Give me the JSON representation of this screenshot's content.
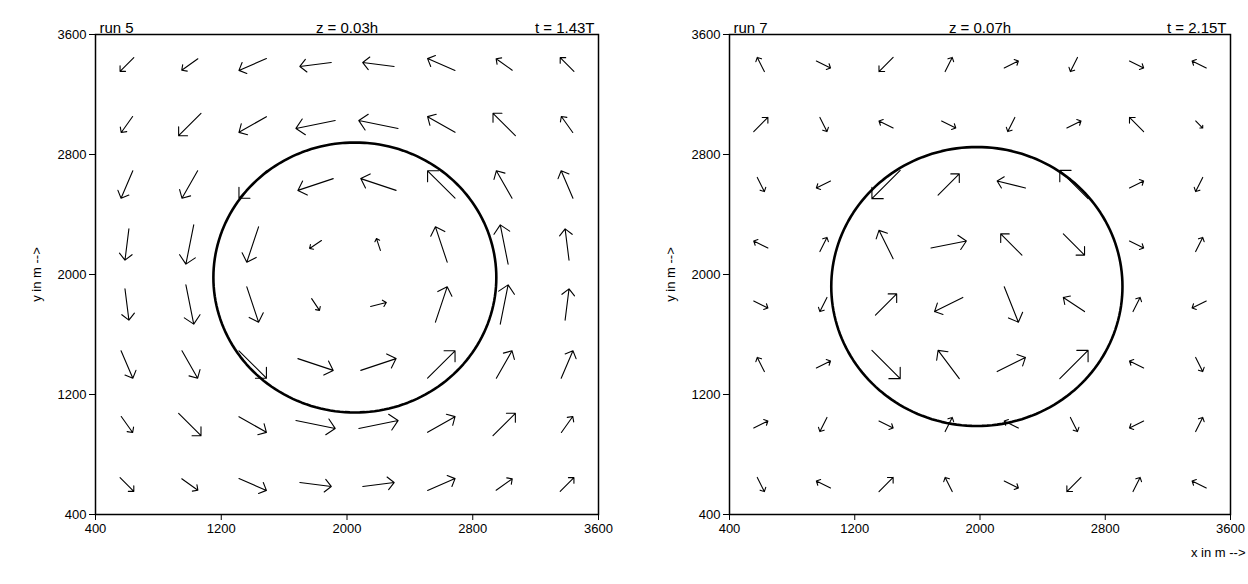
{
  "chart_data": [
    {
      "type": "vector",
      "title": "run 5",
      "level": "z = 0.03h",
      "time": "t = 1.43T",
      "ylabel": "y in m -->",
      "xlim": [
        400,
        3600
      ],
      "ylim": [
        400,
        3600
      ],
      "xticks": [
        400,
        1200,
        2000,
        2800,
        3600
      ],
      "yticks": [
        400,
        1200,
        2000,
        2800,
        3600
      ],
      "circle": {
        "x": 2050,
        "y": 1980,
        "r": 900
      },
      "vectors": [
        [
          600,
          600,
          0.035,
          -0.035
        ],
        [
          1000,
          600,
          0.041,
          -0.029
        ],
        [
          1400,
          600,
          0.07,
          -0.03
        ],
        [
          1800,
          600,
          0.08,
          -0.01
        ],
        [
          2200,
          600,
          0.08,
          0.01
        ],
        [
          2600,
          600,
          0.07,
          0.03
        ],
        [
          3000,
          600,
          0.041,
          0.029
        ],
        [
          3400,
          600,
          0.035,
          0.035
        ],
        [
          600,
          1000,
          0.029,
          -0.041
        ],
        [
          1000,
          1000,
          0.057,
          -0.057
        ],
        [
          1400,
          1000,
          0.07,
          -0.04
        ],
        [
          1800,
          1000,
          0.1,
          -0.02
        ],
        [
          2200,
          1000,
          0.1,
          0.02
        ],
        [
          2600,
          1000,
          0.07,
          0.04
        ],
        [
          3000,
          1000,
          0.057,
          0.057
        ],
        [
          3400,
          1000,
          0.029,
          0.041
        ],
        [
          600,
          1400,
          0.03,
          -0.07
        ],
        [
          1000,
          1400,
          0.04,
          -0.07
        ],
        [
          1400,
          1400,
          0.07,
          -0.07
        ],
        [
          1800,
          1400,
          0.09,
          -0.03
        ],
        [
          2200,
          1400,
          0.09,
          0.03
        ],
        [
          2600,
          1400,
          0.07,
          0.07
        ],
        [
          3000,
          1400,
          0.04,
          0.07
        ],
        [
          3400,
          1400,
          0.03,
          0.07
        ],
        [
          600,
          1800,
          0.01,
          -0.08
        ],
        [
          1000,
          1800,
          0.02,
          -0.1
        ],
        [
          1400,
          1800,
          0.03,
          -0.09
        ],
        [
          1800,
          1800,
          0.02,
          -0.03
        ],
        [
          2200,
          1800,
          0.04,
          0.01
        ],
        [
          2600,
          1800,
          0.03,
          0.09
        ],
        [
          3000,
          1800,
          0.02,
          0.1
        ],
        [
          3400,
          1800,
          0.01,
          0.08
        ],
        [
          600,
          2200,
          -0.01,
          -0.08
        ],
        [
          1000,
          2200,
          -0.02,
          -0.1
        ],
        [
          1400,
          2200,
          -0.03,
          -0.09
        ],
        [
          1800,
          2200,
          -0.03,
          -0.02
        ],
        [
          2200,
          2200,
          -0.01,
          0.03
        ],
        [
          2600,
          2200,
          -0.03,
          0.09
        ],
        [
          3000,
          2200,
          -0.02,
          0.1
        ],
        [
          3400,
          2200,
          -0.01,
          0.08
        ],
        [
          600,
          2600,
          -0.03,
          -0.07
        ],
        [
          1000,
          2600,
          -0.04,
          -0.07
        ],
        [
          1400,
          2600,
          -0.07,
          -0.07
        ],
        [
          1800,
          2600,
          -0.09,
          -0.03
        ],
        [
          2200,
          2600,
          -0.09,
          0.03
        ],
        [
          2600,
          2600,
          -0.07,
          0.07
        ],
        [
          3000,
          2600,
          -0.04,
          0.07
        ],
        [
          3400,
          2600,
          -0.03,
          0.07
        ],
        [
          600,
          3000,
          -0.029,
          -0.041
        ],
        [
          1000,
          3000,
          -0.057,
          -0.057
        ],
        [
          1400,
          3000,
          -0.07,
          -0.04
        ],
        [
          1800,
          3000,
          -0.1,
          -0.02
        ],
        [
          2200,
          3000,
          -0.1,
          0.02
        ],
        [
          2600,
          3000,
          -0.07,
          0.04
        ],
        [
          3000,
          3000,
          -0.057,
          0.057
        ],
        [
          3400,
          3000,
          -0.029,
          0.041
        ],
        [
          600,
          3400,
          -0.035,
          -0.035
        ],
        [
          1000,
          3400,
          -0.041,
          -0.029
        ],
        [
          1400,
          3400,
          -0.07,
          -0.03
        ],
        [
          1800,
          3400,
          -0.08,
          -0.01
        ],
        [
          2200,
          3400,
          -0.08,
          0.01
        ],
        [
          2600,
          3400,
          -0.07,
          0.03
        ],
        [
          3000,
          3400,
          -0.041,
          0.029
        ],
        [
          3400,
          3400,
          -0.035,
          0.035
        ]
      ]
    },
    {
      "type": "vector",
      "title": "run 7",
      "level": "z = 0.07h",
      "time": "t = 2.15T",
      "xlabel": "x in m -->",
      "ylabel": "y in m -->",
      "xlim": [
        400,
        3600
      ],
      "ylim": [
        400,
        3600
      ],
      "xticks": [
        400,
        1200,
        2000,
        2800,
        3600
      ],
      "yticks": [
        400,
        1200,
        2000,
        2800,
        3600
      ],
      "circle": {
        "x": 1980,
        "y": 1920,
        "r": 930
      },
      "vectors": [
        [
          600,
          600,
          0.01,
          -0.02
        ],
        [
          1000,
          600,
          -0.02,
          0.01
        ],
        [
          1400,
          600,
          0.02,
          0.02
        ],
        [
          1800,
          600,
          -0.01,
          0.02
        ],
        [
          2200,
          600,
          0.02,
          -0.01
        ],
        [
          2600,
          600,
          -0.02,
          -0.02
        ],
        [
          3000,
          600,
          0.01,
          0.02
        ],
        [
          3400,
          600,
          -0.02,
          0.01
        ],
        [
          600,
          1000,
          0.02,
          0.01
        ],
        [
          1000,
          1000,
          -0.01,
          -0.02
        ],
        [
          1400,
          1000,
          0.02,
          -0.01
        ],
        [
          1800,
          1000,
          0.01,
          0.02
        ],
        [
          2200,
          1000,
          -0.02,
          0.01
        ],
        [
          2600,
          1000,
          0.01,
          -0.02
        ],
        [
          3000,
          1000,
          -0.02,
          -0.01
        ],
        [
          3400,
          1000,
          0.01,
          0.02
        ],
        [
          600,
          1400,
          -0.01,
          0.02
        ],
        [
          1000,
          1400,
          0.02,
          0.01
        ],
        [
          1400,
          1400,
          0.04,
          -0.04
        ],
        [
          1800,
          1400,
          -0.03,
          0.04
        ],
        [
          2200,
          1400,
          0.04,
          0.02
        ],
        [
          2600,
          1400,
          0.04,
          0.04
        ],
        [
          3000,
          1400,
          -0.02,
          0.01
        ],
        [
          3400,
          1400,
          0.01,
          -0.02
        ],
        [
          600,
          1800,
          0.02,
          -0.01
        ],
        [
          1000,
          1800,
          -0.01,
          -0.02
        ],
        [
          1400,
          1800,
          0.03,
          0.03
        ],
        [
          1800,
          1800,
          -0.04,
          -0.02
        ],
        [
          2200,
          1800,
          0.02,
          -0.05
        ],
        [
          2600,
          1800,
          -0.03,
          0.02
        ],
        [
          3000,
          1800,
          0.01,
          0.02
        ],
        [
          3400,
          1800,
          -0.02,
          -0.01
        ],
        [
          600,
          2200,
          -0.02,
          0.01
        ],
        [
          1000,
          2200,
          0.01,
          0.02
        ],
        [
          1400,
          2200,
          -0.02,
          0.04
        ],
        [
          1800,
          2200,
          0.05,
          0.01
        ],
        [
          2200,
          2200,
          -0.03,
          0.03
        ],
        [
          2600,
          2200,
          0.03,
          -0.03
        ],
        [
          3000,
          2200,
          0.02,
          -0.01
        ],
        [
          3400,
          2200,
          0.01,
          0.02
        ],
        [
          600,
          2600,
          0.01,
          -0.02
        ],
        [
          1000,
          2600,
          -0.02,
          -0.01
        ],
        [
          1400,
          2600,
          -0.04,
          -0.04
        ],
        [
          1800,
          2600,
          0.03,
          0.03
        ],
        [
          2200,
          2600,
          -0.04,
          0.01
        ],
        [
          2600,
          2600,
          -0.04,
          0.04
        ],
        [
          3000,
          2600,
          0.02,
          0.01
        ],
        [
          3400,
          2600,
          -0.01,
          -0.02
        ],
        [
          600,
          3000,
          0.02,
          0.02
        ],
        [
          1000,
          3000,
          0.01,
          -0.02
        ],
        [
          1400,
          3000,
          -0.02,
          0.01
        ],
        [
          1800,
          3000,
          0.02,
          -0.01
        ],
        [
          2200,
          3000,
          -0.01,
          -0.02
        ],
        [
          2600,
          3000,
          0.02,
          0.01
        ],
        [
          3000,
          3000,
          -0.02,
          0.02
        ],
        [
          3400,
          3000,
          0.01,
          -0.01
        ],
        [
          600,
          3400,
          -0.01,
          0.02
        ],
        [
          1000,
          3400,
          0.02,
          -0.01
        ],
        [
          1400,
          3400,
          -0.02,
          -0.02
        ],
        [
          1800,
          3400,
          0.01,
          0.02
        ],
        [
          2200,
          3400,
          0.02,
          0.01
        ],
        [
          2600,
          3400,
          -0.01,
          -0.02
        ],
        [
          3000,
          3400,
          0.02,
          -0.01
        ],
        [
          3400,
          3400,
          -0.02,
          0.01
        ]
      ]
    }
  ]
}
